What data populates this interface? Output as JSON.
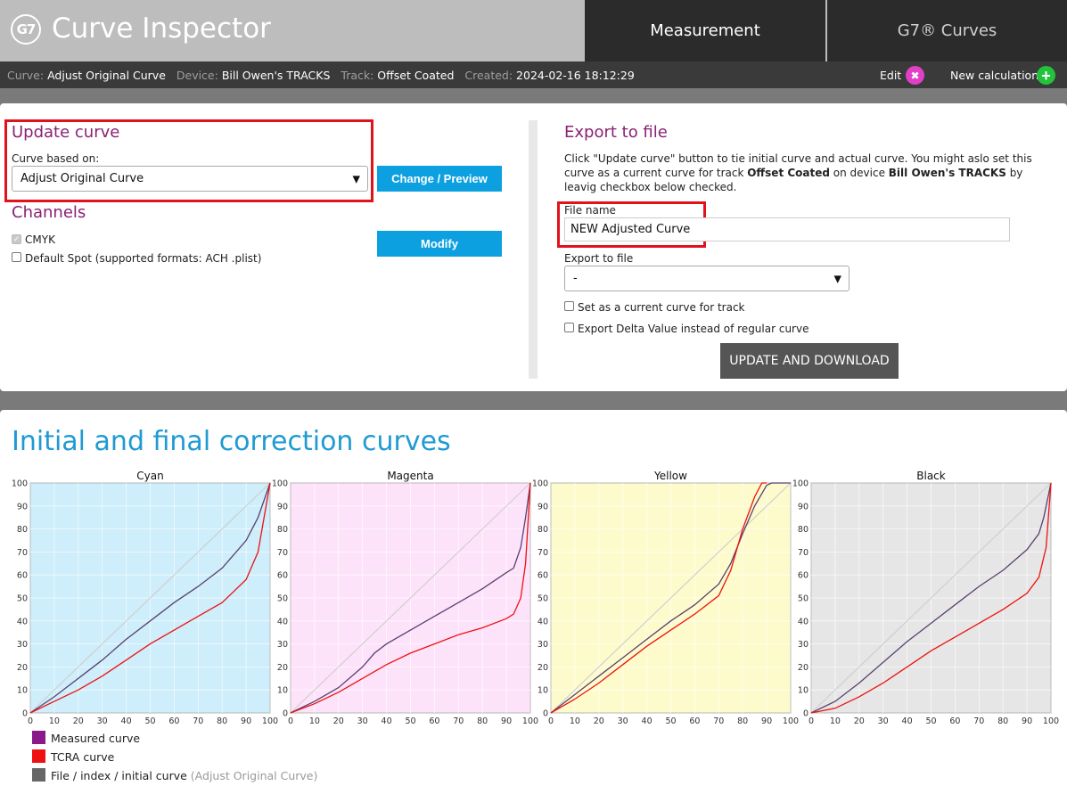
{
  "header": {
    "logo_text": "G7",
    "app_title": "Curve Inspector",
    "tabs": [
      {
        "label": "Measurement",
        "active": true
      },
      {
        "label": "G7® Curves",
        "active": false
      }
    ]
  },
  "infobar": {
    "curve_key": "Curve:",
    "curve_val": "Adjust Original Curve",
    "device_key": "Device:",
    "device_val": "Bill Owen's TRACKS",
    "track_key": "Track:",
    "track_val": "Offset Coated",
    "created_key": "Created:",
    "created_val": "2024-02-16 18:12:29",
    "edit_label": "Edit",
    "new_calc_label": "New calculation",
    "edit_icon": "tools-icon",
    "new_icon": "plus-icon"
  },
  "update_curve": {
    "title": "Update curve",
    "based_on_label": "Curve based on:",
    "based_on_value": "Adjust Original Curve",
    "preview_button": "Change / Preview"
  },
  "channels": {
    "title": "Channels",
    "items": [
      {
        "label": "CMYK",
        "checked": true,
        "disabled": true
      },
      {
        "label": "Default Spot (supported formats: ACH .plist)",
        "checked": false
      }
    ],
    "modify_button": "Modify"
  },
  "export": {
    "title": "Export to file",
    "desc_1": "Click \"Update curve\" button to tie initial curve and actual curve. You might aslo set this curve as a current curve for track ",
    "desc_track": "Offset Coated",
    "desc_2": " on device ",
    "desc_device": "Bill Owen's TRACKS",
    "desc_3": " by leavig checkbox below checked.",
    "file_name_label": "File name",
    "file_name_value": "NEW Adjusted Curve",
    "export_to_label": "Export to file",
    "export_to_value": "-",
    "set_current_label": "Set as a current curve for track",
    "delta_label": "Export Delta Value instead of regular curve",
    "update_button": "UPDATE AND DOWNLOAD"
  },
  "charts_section": {
    "title": "Initial and final correction curves"
  },
  "legend": {
    "measured": "Measured curve",
    "tcra": "TCRA curve",
    "file_curve": "File / index / initial curve",
    "file_curve_note": "(Adjust Original Curve)",
    "colors": {
      "measured": "#8a1a8a",
      "tcra": "#ee1111",
      "file": "#666666"
    }
  },
  "chart_data": [
    {
      "type": "line",
      "title": "Cyan",
      "bg": "#cdeefa",
      "xlim": [
        0,
        100
      ],
      "ylim": [
        0,
        100
      ],
      "ticks": [
        0,
        10,
        20,
        30,
        40,
        50,
        60,
        70,
        80,
        90,
        100
      ],
      "grid": true,
      "series": [
        {
          "role": "file",
          "color": "#cfcfcf",
          "x": [
            0,
            100
          ],
          "y": [
            0,
            100
          ]
        },
        {
          "role": "measured",
          "color": "#5a4070",
          "x": [
            0,
            10,
            20,
            30,
            40,
            50,
            60,
            70,
            80,
            90,
            95,
            100
          ],
          "y": [
            0,
            7,
            15,
            23,
            32,
            40,
            48,
            55,
            63,
            75,
            85,
            100
          ]
        },
        {
          "role": "tcra",
          "color": "#ee1111",
          "x": [
            0,
            10,
            20,
            30,
            40,
            50,
            60,
            70,
            80,
            90,
            95,
            100
          ],
          "y": [
            0,
            5,
            10,
            16,
            23,
            30,
            36,
            42,
            48,
            58,
            70,
            100
          ]
        }
      ]
    },
    {
      "type": "line",
      "title": "Magenta",
      "bg": "#fde3fa",
      "xlim": [
        0,
        100
      ],
      "ylim": [
        0,
        100
      ],
      "ticks": [
        0,
        10,
        20,
        30,
        40,
        50,
        60,
        70,
        80,
        90,
        100
      ],
      "grid": true,
      "series": [
        {
          "role": "file",
          "color": "#cfcfcf",
          "x": [
            0,
            100
          ],
          "y": [
            0,
            100
          ]
        },
        {
          "role": "measured",
          "color": "#5a4070",
          "x": [
            0,
            10,
            20,
            30,
            35,
            40,
            50,
            60,
            70,
            80,
            90,
            93,
            96,
            98,
            100
          ],
          "y": [
            0,
            5,
            11,
            20,
            26,
            30,
            36,
            42,
            48,
            54,
            61,
            63,
            72,
            85,
            100
          ]
        },
        {
          "role": "tcra",
          "color": "#ee1111",
          "x": [
            0,
            10,
            20,
            30,
            40,
            50,
            60,
            70,
            80,
            90,
            93,
            96,
            98,
            100
          ],
          "y": [
            0,
            4,
            9,
            15,
            21,
            26,
            30,
            34,
            37,
            41,
            43,
            50,
            65,
            100
          ]
        }
      ]
    },
    {
      "type": "line",
      "title": "Yellow",
      "bg": "#fdfbcc",
      "xlim": [
        0,
        100
      ],
      "ylim": [
        0,
        100
      ],
      "ticks": [
        0,
        10,
        20,
        30,
        40,
        50,
        60,
        70,
        80,
        90,
        100
      ],
      "grid": true,
      "series": [
        {
          "role": "file",
          "color": "#cfcfcf",
          "x": [
            0,
            100
          ],
          "y": [
            0,
            100
          ]
        },
        {
          "role": "measured",
          "color": "#5a4070",
          "x": [
            0,
            10,
            20,
            30,
            40,
            50,
            60,
            70,
            75,
            80,
            85,
            90,
            92,
            100
          ],
          "y": [
            0,
            8,
            16,
            24,
            32,
            40,
            47,
            56,
            65,
            78,
            90,
            99,
            100,
            100
          ]
        },
        {
          "role": "tcra",
          "color": "#ee1111",
          "x": [
            0,
            10,
            20,
            30,
            40,
            50,
            60,
            70,
            75,
            80,
            85,
            88,
            90
          ],
          "y": [
            0,
            6,
            13,
            21,
            29,
            36,
            43,
            51,
            62,
            80,
            94,
            100,
            100
          ]
        }
      ]
    },
    {
      "type": "line",
      "title": "Black",
      "bg": "#e6e6e6",
      "xlim": [
        0,
        100
      ],
      "ylim": [
        0,
        100
      ],
      "ticks": [
        0,
        10,
        20,
        30,
        40,
        50,
        60,
        70,
        80,
        90,
        100
      ],
      "grid": true,
      "series": [
        {
          "role": "file",
          "color": "#cfcfcf",
          "x": [
            0,
            100
          ],
          "y": [
            0,
            100
          ]
        },
        {
          "role": "measured",
          "color": "#5a4070",
          "x": [
            0,
            10,
            20,
            30,
            40,
            50,
            60,
            70,
            80,
            90,
            95,
            97,
            100
          ],
          "y": [
            0,
            5,
            13,
            22,
            31,
            39,
            47,
            55,
            62,
            71,
            78,
            85,
            100
          ]
        },
        {
          "role": "tcra",
          "color": "#ee1111",
          "x": [
            0,
            10,
            20,
            30,
            40,
            50,
            60,
            70,
            80,
            90,
            95,
            98,
            100
          ],
          "y": [
            0,
            2,
            7,
            13,
            20,
            27,
            33,
            39,
            45,
            52,
            59,
            72,
            100
          ]
        }
      ]
    }
  ]
}
